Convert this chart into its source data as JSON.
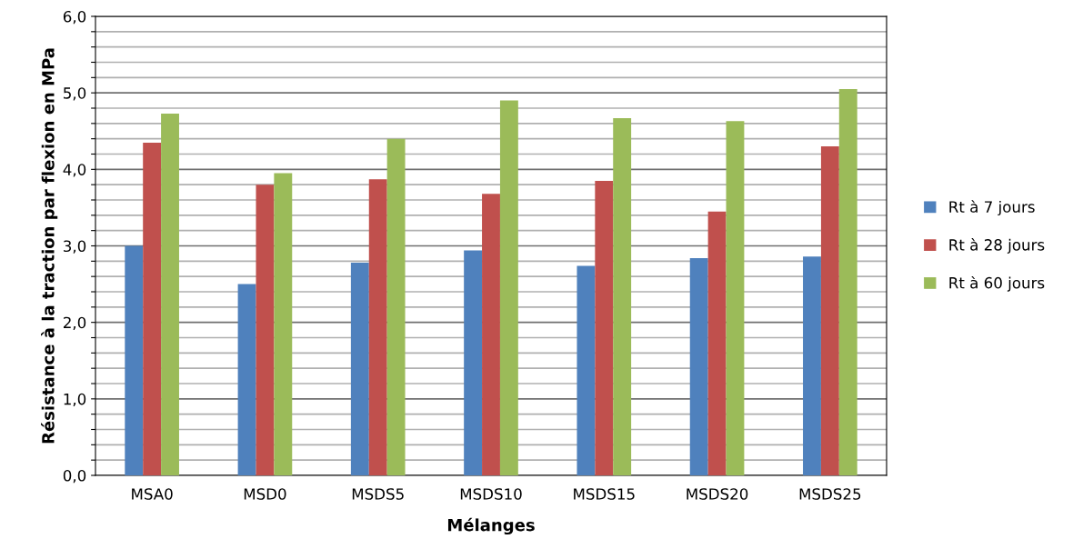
{
  "chart_data": {
    "type": "bar",
    "xlabel": "Mélanges",
    "ylabel": "Résistance à la traction par flexion en MPa",
    "categories": [
      "MSA0",
      "MSD0",
      "MSDS5",
      "MSDS10",
      "MSDS15",
      "MSDS20",
      "MSDS25"
    ],
    "series": [
      {
        "name": "Rt à 7 jours",
        "color": "#4f81bd",
        "values": [
          3.0,
          2.5,
          2.78,
          2.94,
          2.74,
          2.84,
          2.86
        ]
      },
      {
        "name": "Rt à 28 jours",
        "color": "#c0504d",
        "values": [
          4.35,
          3.8,
          3.87,
          3.68,
          3.85,
          3.45,
          4.3
        ]
      },
      {
        "name": "Rt à 60 jours",
        "color": "#9bbb59",
        "values": [
          4.73,
          3.95,
          4.4,
          4.9,
          4.67,
          4.63,
          5.05
        ]
      }
    ],
    "ylim": [
      0,
      6
    ],
    "yticks": [
      {
        "value": 0,
        "label": "0,0"
      },
      {
        "value": 0.2,
        "label": null
      },
      {
        "value": 0.4,
        "label": null
      },
      {
        "value": 0.6,
        "label": null
      },
      {
        "value": 0.8,
        "label": null
      },
      {
        "value": 1,
        "label": "1,0"
      },
      {
        "value": 1.2,
        "label": null
      },
      {
        "value": 1.4,
        "label": null
      },
      {
        "value": 1.6,
        "label": null
      },
      {
        "value": 1.8,
        "label": null
      },
      {
        "value": 2,
        "label": "2,0"
      },
      {
        "value": 2.2,
        "label": null
      },
      {
        "value": 2.4,
        "label": null
      },
      {
        "value": 2.6,
        "label": null
      },
      {
        "value": 2.8,
        "label": null
      },
      {
        "value": 3,
        "label": "3,0"
      },
      {
        "value": 3.2,
        "label": null
      },
      {
        "value": 3.4,
        "label": null
      },
      {
        "value": 3.6,
        "label": null
      },
      {
        "value": 3.8,
        "label": null
      },
      {
        "value": 4,
        "label": "4,0"
      },
      {
        "value": 4.2,
        "label": null
      },
      {
        "value": 4.4,
        "label": null
      },
      {
        "value": 4.6,
        "label": null
      },
      {
        "value": 4.8,
        "label": null
      },
      {
        "value": 5,
        "label": "5,0"
      },
      {
        "value": 5.2,
        "label": null
      },
      {
        "value": 5.4,
        "label": null
      },
      {
        "value": 5.6,
        "label": null
      },
      {
        "value": 5.8,
        "label": null
      },
      {
        "value": 6,
        "label": "6,0"
      }
    ],
    "grid": "y",
    "legend": "right"
  }
}
